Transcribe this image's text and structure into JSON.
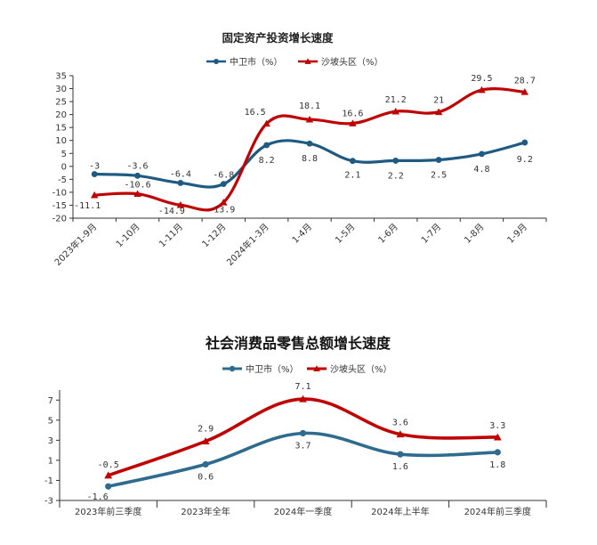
{
  "chart_data": [
    {
      "type": "line",
      "title": "固定资产投资增长速度",
      "categories": [
        "2023年1-9月",
        "1-10月",
        "1-11月",
        "1-12月",
        "2024年1-3月",
        "1-4月",
        "1-5月",
        "1-6月",
        "1-7月",
        "1-8月",
        "1-9月"
      ],
      "yticks": [
        "35",
        "30",
        "25",
        "20",
        "15",
        "10",
        "5",
        "0",
        "-5",
        "-10",
        "-15",
        "-20"
      ],
      "ylim": [
        -20,
        35
      ],
      "legend_position": "top-center",
      "series": [
        {
          "name": "中卫市（%）",
          "color": "#1f5a82",
          "marker": "circle",
          "values": [
            -3,
            -3.6,
            -6.4,
            -6.8,
            8.2,
            8.8,
            2.1,
            2.2,
            2.5,
            4.8,
            9.2
          ],
          "labels": [
            "-3",
            "-3.6",
            "-6.4",
            "-6.8",
            "8.2",
            "8.8",
            "2.1",
            "2.2",
            "2.5",
            "4.8",
            "9.2"
          ]
        },
        {
          "name": "沙坡头区（%）",
          "color": "#c00000",
          "marker": "triangle",
          "values": [
            -11.1,
            -10.6,
            -14.9,
            -13.9,
            16.5,
            18.1,
            16.6,
            21.2,
            21,
            29.5,
            28.7
          ],
          "labels": [
            "-11.1",
            "-10.6",
            "-14.9",
            "-13.9",
            "16.5",
            "18.1",
            "16.6",
            "21.2",
            "21",
            "29.5",
            "28.7"
          ]
        }
      ]
    },
    {
      "type": "line",
      "title": "社会消费品零售总额增长速度",
      "categories": [
        "2023年前三季度",
        "2023年全年",
        "2024年一季度",
        "2024年上半年",
        "2024年前三季度"
      ],
      "yticks": [
        "7",
        "5",
        "3",
        "1",
        "-1",
        "-3"
      ],
      "ylim": [
        -3,
        8
      ],
      "legend_position": "top-center",
      "series": [
        {
          "name": "中卫市（%）",
          "color": "#2e6b8f",
          "marker": "circle",
          "values": [
            -1.6,
            0.6,
            3.7,
            1.6,
            1.8
          ],
          "labels": [
            "-1.6",
            "0.6",
            "3.7",
            "1.6",
            "1.8"
          ]
        },
        {
          "name": "沙坡头区（%）",
          "color": "#c00000",
          "marker": "triangle",
          "values": [
            -0.5,
            2.9,
            7.1,
            3.6,
            3.3
          ],
          "labels": [
            "-0.5",
            "2.9",
            "7.1",
            "3.6",
            "3.3"
          ]
        }
      ]
    }
  ]
}
